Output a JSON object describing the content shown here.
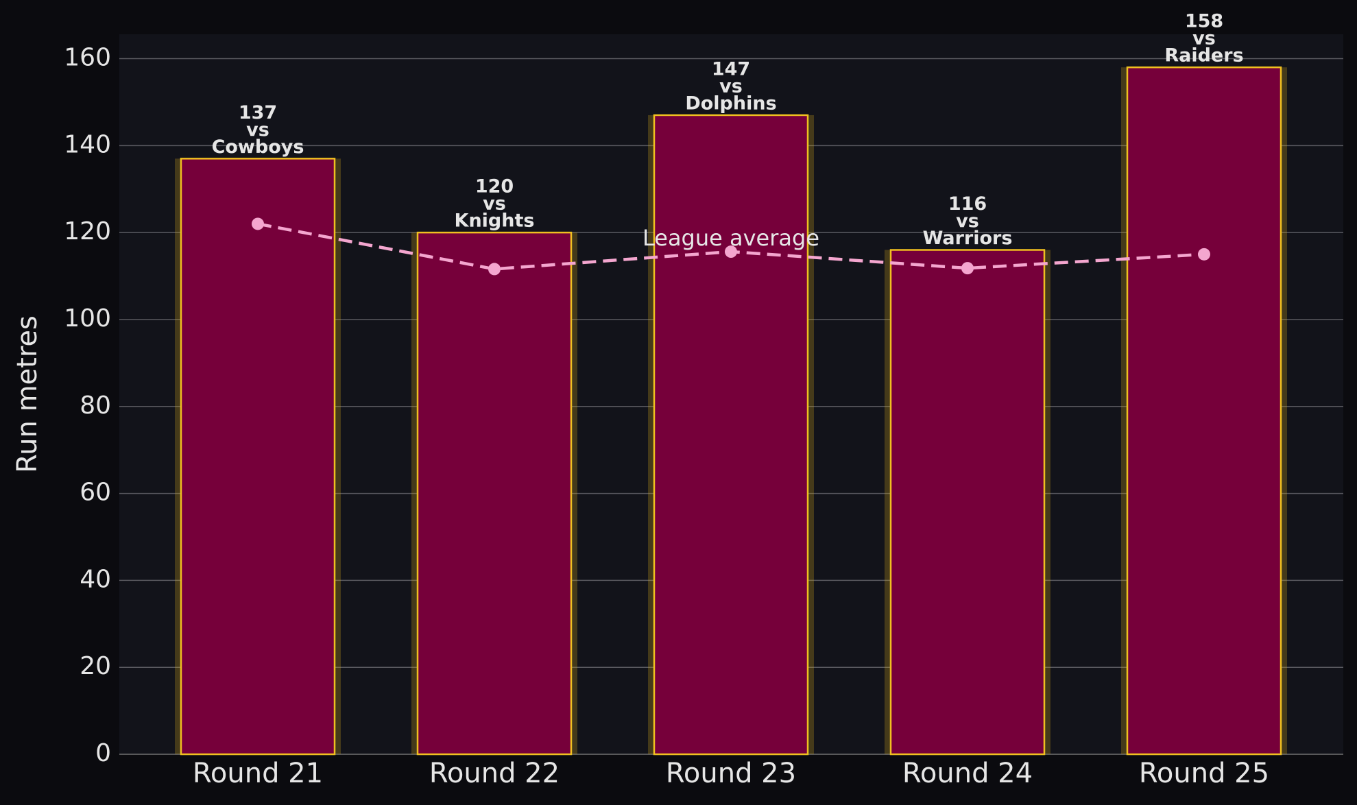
{
  "chart_data": {
    "type": "bar",
    "y_label": "Run metres",
    "categories": [
      "Round 21",
      "Round 22",
      "Round 23",
      "Round 24",
      "Round 25"
    ],
    "series": [
      {
        "values": [
          137,
          120,
          147,
          116,
          158
        ],
        "color": "#76003a",
        "edge_color": "#f0c020",
        "matchups": [
          [
            "vs",
            "Cowboys"
          ],
          [
            "vs",
            "Knights"
          ],
          [
            "vs",
            "Dolphins"
          ],
          [
            "vs",
            "Warriors"
          ],
          [
            "vs",
            "Raiders"
          ]
        ]
      },
      {
        "type": "line",
        "name": "League average",
        "color": "#f4a6cf",
        "values": [
          122,
          111.6,
          115.6,
          111.8,
          115.0
        ]
      }
    ],
    "ylim": [
      0,
      165.6
    ],
    "yticks": [
      0,
      20,
      40,
      60,
      80,
      100,
      120,
      140,
      160
    ],
    "grid": true
  }
}
